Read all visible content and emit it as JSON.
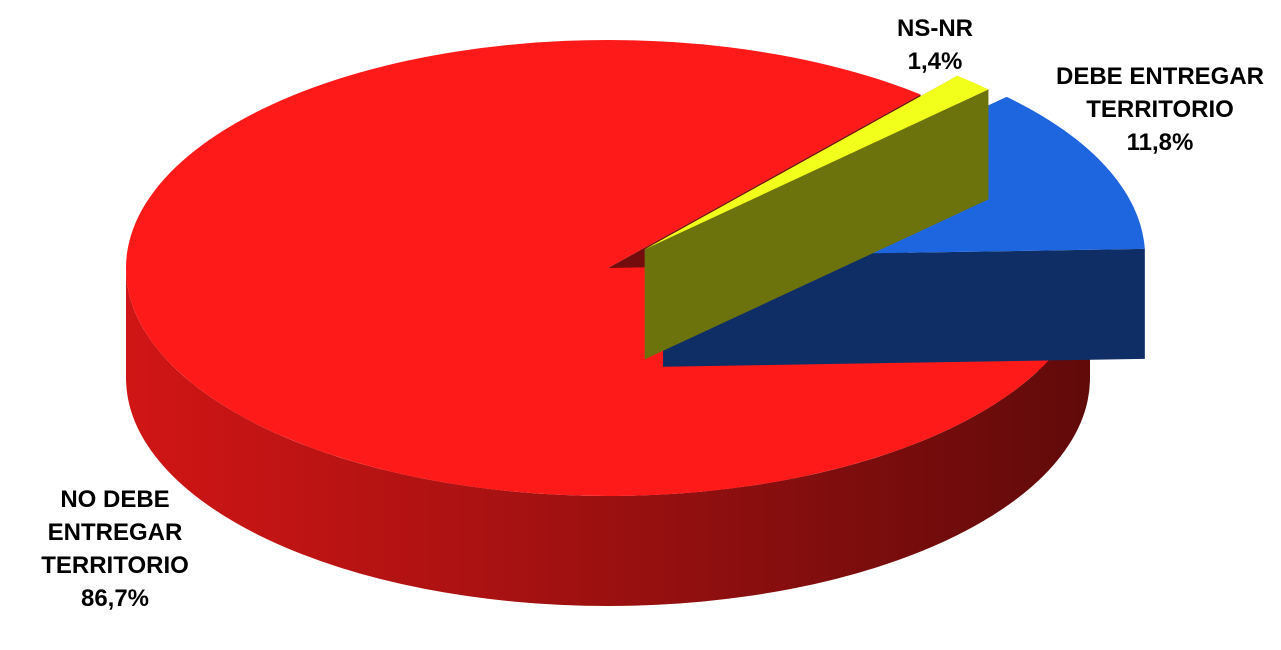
{
  "chart_data": {
    "type": "pie",
    "style": "3d-exploded",
    "title": "",
    "slices": [
      {
        "label_lines": [
          "NO DEBE",
          "ENTREGAR",
          "TERRITORIO"
        ],
        "value": 86.7,
        "value_text": "86,7%",
        "color": "#ff1a1a"
      },
      {
        "label_lines": [
          "NS-NR"
        ],
        "value": 1.4,
        "value_text": "1,4%",
        "color": "#f2ff1a"
      },
      {
        "label_lines": [
          "DEBE ENTREGAR",
          "TERRITORIO"
        ],
        "value": 11.8,
        "value_text": "11,8%",
        "color": "#1e66e0"
      }
    ]
  }
}
